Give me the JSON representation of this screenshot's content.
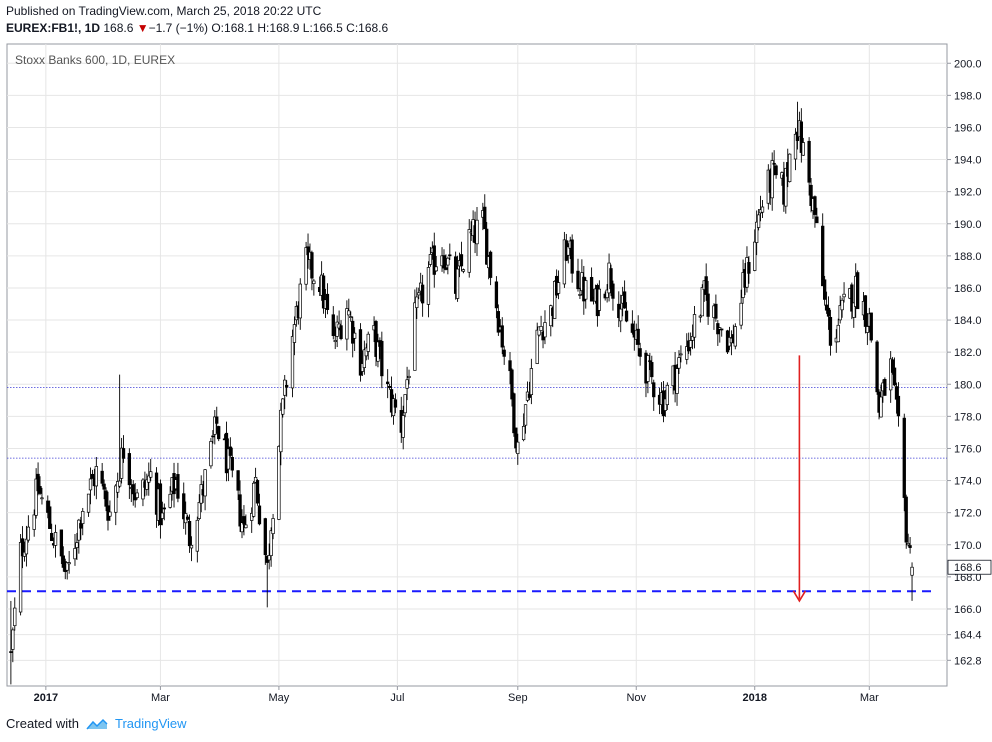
{
  "header": {
    "published": "Published on TradingView.com, March 25, 2018 20:22 UTC",
    "symbol": "EUREX:FB1!, 1D",
    "last": "168.6",
    "change": "−1.7 (−1%)",
    "o_label": "O:",
    "o": "168.1",
    "h_label": "H:",
    "h": "168.9",
    "l_label": "L:",
    "l": "166.5",
    "c_label": "C:",
    "c": "168.6"
  },
  "footer": {
    "created_with": "Created with",
    "brand": "TradingView"
  },
  "colors": {
    "candle": "#000000",
    "grid": "#e6e6e6",
    "dashed_line": "#1a1aff",
    "dotted_line": "#3f3fd6",
    "arrow": "#e02020",
    "price_label_bg": "#ffffff"
  },
  "chart_data": {
    "type": "candlestick",
    "title": "Stoxx Banks 600, 1D, EUREX",
    "ylim": [
      161.2,
      201.2
    ],
    "yticks": [
      162.8,
      164.4,
      166.0,
      168.0,
      170.0,
      172.0,
      174.0,
      176.0,
      178.0,
      180.0,
      182.0,
      184.0,
      186.0,
      188.0,
      190.0,
      192.0,
      194.0,
      196.0,
      198.0,
      200.0
    ],
    "ytick_labels": [
      "162.8",
      "164.4",
      "166.0",
      "168.0",
      "170.0",
      "172.0",
      "174.0",
      "176.0",
      "178.0",
      "180.0",
      "182.0",
      "184.0",
      "186.0",
      "188.0",
      "190.0",
      "192.0",
      "194.0",
      "196.0",
      "198.0",
      "200.0"
    ],
    "xticks": [
      {
        "label": "2017",
        "date": "2017-01-01",
        "bold": true
      },
      {
        "label": "Mar",
        "date": "2017-03-01",
        "bold": false
      },
      {
        "label": "May",
        "date": "2017-05-01",
        "bold": false
      },
      {
        "label": "Jul",
        "date": "2017-07-01",
        "bold": false
      },
      {
        "label": "Sep",
        "date": "2017-09-01",
        "bold": false
      },
      {
        "label": "Nov",
        "date": "2017-11-01",
        "bold": false
      },
      {
        "label": "2018",
        "date": "2018-01-01",
        "bold": true
      },
      {
        "label": "Mar",
        "date": "2018-03-01",
        "bold": false
      }
    ],
    "xrange": [
      "2016-12-12",
      "2018-04-10"
    ],
    "last_price_label": "168.6",
    "last_price": 168.6,
    "horizontal_levels": [
      {
        "value": 167.1,
        "style": "dashed"
      },
      {
        "value": 179.8,
        "style": "dotted"
      },
      {
        "value": 175.4,
        "style": "dotted"
      }
    ],
    "arrow": {
      "date": "2018-01-24",
      "from": 181.8,
      "to": 166.5
    },
    "grid": true,
    "close_anchors": [
      [
        "2016-12-14",
        163.0
      ],
      [
        "2016-12-19",
        169.5
      ],
      [
        "2016-12-28",
        173.5
      ],
      [
        "2017-01-04",
        170.8
      ],
      [
        "2017-01-12",
        168.0
      ],
      [
        "2017-01-20",
        172.5
      ],
      [
        "2017-01-27",
        174.5
      ],
      [
        "2017-02-03",
        172.0
      ],
      [
        "2017-02-10",
        176.0
      ],
      [
        "2017-02-17",
        172.8
      ],
      [
        "2017-02-24",
        174.3
      ],
      [
        "2017-03-02",
        171.5
      ],
      [
        "2017-03-09",
        174.0
      ],
      [
        "2017-03-16",
        170.5
      ],
      [
        "2017-03-23",
        173.5
      ],
      [
        "2017-03-30",
        177.5
      ],
      [
        "2017-04-06",
        174.5
      ],
      [
        "2017-04-13",
        171.0
      ],
      [
        "2017-04-19",
        174.0
      ],
      [
        "2017-04-25",
        168.5
      ],
      [
        "2017-04-27",
        171.5
      ],
      [
        "2017-05-02",
        177.5
      ],
      [
        "2017-05-08",
        183.0
      ],
      [
        "2017-05-15",
        187.5
      ],
      [
        "2017-05-22",
        186.5
      ],
      [
        "2017-05-29",
        182.5
      ],
      [
        "2017-06-05",
        185.0
      ],
      [
        "2017-06-12",
        181.5
      ],
      [
        "2017-06-19",
        183.0
      ],
      [
        "2017-06-26",
        179.5
      ],
      [
        "2017-07-03",
        177.5
      ],
      [
        "2017-07-10",
        184.0
      ],
      [
        "2017-07-17",
        187.0
      ],
      [
        "2017-07-24",
        188.5
      ],
      [
        "2017-07-31",
        186.0
      ],
      [
        "2017-08-07",
        189.0
      ],
      [
        "2017-08-14",
        190.0
      ],
      [
        "2017-08-21",
        185.0
      ],
      [
        "2017-08-28",
        180.0
      ],
      [
        "2017-09-01",
        176.0
      ],
      [
        "2017-09-06",
        179.5
      ],
      [
        "2017-09-12",
        183.5
      ],
      [
        "2017-09-18",
        184.5
      ],
      [
        "2017-09-26",
        188.5
      ],
      [
        "2017-10-04",
        186.0
      ],
      [
        "2017-10-11",
        185.0
      ],
      [
        "2017-10-18",
        187.0
      ],
      [
        "2017-10-25",
        184.5
      ],
      [
        "2017-11-01",
        182.5
      ],
      [
        "2017-11-08",
        180.5
      ],
      [
        "2017-11-15",
        179.0
      ],
      [
        "2017-11-22",
        181.0
      ],
      [
        "2017-11-29",
        183.0
      ],
      [
        "2017-12-06",
        185.5
      ],
      [
        "2017-12-13",
        184.0
      ],
      [
        "2017-12-20",
        182.5
      ],
      [
        "2017-12-27",
        186.5
      ],
      [
        "2018-01-04",
        191.0
      ],
      [
        "2018-01-10",
        193.0
      ],
      [
        "2018-01-16",
        192.0
      ],
      [
        "2018-01-22",
        196.5
      ],
      [
        "2018-01-26",
        194.5
      ],
      [
        "2018-02-01",
        190.5
      ],
      [
        "2018-02-06",
        185.0
      ],
      [
        "2018-02-10",
        182.5
      ],
      [
        "2018-02-15",
        184.5
      ],
      [
        "2018-02-22",
        186.0
      ],
      [
        "2018-03-01",
        184.0
      ],
      [
        "2018-03-06",
        178.5
      ],
      [
        "2018-03-12",
        181.0
      ],
      [
        "2018-03-16",
        177.0
      ],
      [
        "2018-03-20",
        171.0
      ],
      [
        "2018-03-23",
        168.6
      ]
    ]
  }
}
